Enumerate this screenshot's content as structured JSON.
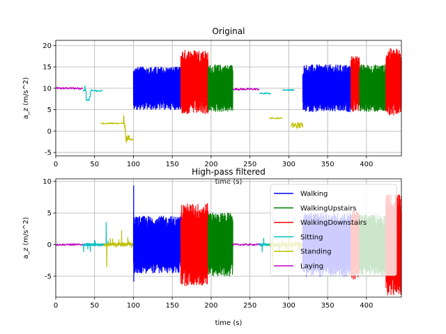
{
  "chart_data": [
    {
      "type": "line",
      "title": "Original",
      "xlabel": "time (s)",
      "ylabel": "a_z (m/s^2)",
      "xlim": [
        0,
        445
      ],
      "ylim": [
        -5.8,
        21.2
      ],
      "xticks": [
        0,
        50,
        100,
        150,
        200,
        250,
        300,
        350,
        400
      ],
      "yticks": [
        -5,
        0,
        5,
        10,
        15,
        20
      ],
      "grid": true,
      "segments": [
        {
          "series": "Laying",
          "x": [
            0,
            35
          ],
          "center": 10.0,
          "amp": 0.25,
          "style": "flat"
        },
        {
          "series": "Sitting",
          "x": [
            35,
            48
          ],
          "center": 9.5,
          "amp": 0.3,
          "style": "step_sit1"
        },
        {
          "series": "Sitting",
          "x": [
            48,
            60
          ],
          "center": 9.4,
          "amp": 0.2,
          "style": "flat"
        },
        {
          "series": "Standing",
          "x": [
            58,
            85
          ],
          "center": 1.8,
          "amp": 0.15,
          "style": "flat"
        },
        {
          "series": "Standing",
          "x": [
            85,
            100
          ],
          "center": 0.0,
          "amp": 3.5,
          "style": "stand_drop"
        },
        {
          "series": "Walking",
          "x": [
            100,
            161
          ],
          "center": 10.0,
          "amp": 5.0,
          "style": "osc"
        },
        {
          "series": "WalkingDownstairs",
          "x": [
            161,
            196
          ],
          "center": 11.5,
          "amp": 7.5,
          "style": "osc"
        },
        {
          "series": "WalkingUpstairs",
          "x": [
            196,
            228
          ],
          "center": 10.0,
          "amp": 5.5,
          "style": "osc"
        },
        {
          "series": "Laying",
          "x": [
            228,
            262
          ],
          "center": 9.8,
          "amp": 0.25,
          "style": "flat"
        },
        {
          "series": "Sitting",
          "x": [
            262,
            277
          ],
          "center": 8.8,
          "amp": 0.15,
          "style": "flat"
        },
        {
          "series": "Standing",
          "x": [
            275,
            292
          ],
          "center": 3.0,
          "amp": 0.15,
          "style": "flat"
        },
        {
          "series": "Sitting",
          "x": [
            292,
            307
          ],
          "center": 9.6,
          "amp": 0.15,
          "style": "flat"
        },
        {
          "series": "Standing",
          "x": [
            303,
            318
          ],
          "center": 1.3,
          "amp": 0.8,
          "style": "flat"
        },
        {
          "series": "Walking",
          "x": [
            318,
            380
          ],
          "center": 10.0,
          "amp": 5.5,
          "style": "osc"
        },
        {
          "series": "WalkingDownstairs",
          "x": [
            380,
            391
          ],
          "center": 11.0,
          "amp": 6.5,
          "style": "osc"
        },
        {
          "series": "WalkingUpstairs",
          "x": [
            391,
            425
          ],
          "center": 10.0,
          "amp": 5.5,
          "style": "osc"
        },
        {
          "series": "WalkingDownstairs",
          "x": [
            425,
            445
          ],
          "center": 11.5,
          "amp": 7.8,
          "style": "osc"
        }
      ]
    },
    {
      "type": "line",
      "title": "High-pass filtered",
      "xlabel": "time (s)",
      "ylabel": "a_z (m/s^2)",
      "xlim": [
        0,
        445
      ],
      "ylim": [
        -8.3,
        10.4
      ],
      "xticks": [
        0,
        50,
        100,
        150,
        200,
        250,
        300,
        350,
        400
      ],
      "yticks": [
        -5,
        0,
        5,
        10
      ],
      "grid": true,
      "legend": {
        "position": "top-right",
        "entries": [
          {
            "name": "Walking",
            "color": "#0000ff"
          },
          {
            "name": "WalkingUpstairs",
            "color": "#008000"
          },
          {
            "name": "WalkingDownstairs",
            "color": "#ff0000"
          },
          {
            "name": "Sitting",
            "color": "#00bfbf"
          },
          {
            "name": "Standing",
            "color": "#bfbf00"
          },
          {
            "name": "Laying",
            "color": "#bf00bf"
          }
        ]
      },
      "segments": [
        {
          "series": "Laying",
          "x": [
            0,
            35
          ],
          "center": 0.0,
          "amp": 0.15,
          "style": "flat"
        },
        {
          "series": "Sitting",
          "x": [
            35,
            60
          ],
          "center": 0.0,
          "amp": 0.4,
          "style": "spikes_sit"
        },
        {
          "series": "Sitting",
          "x": [
            60,
            70
          ],
          "center": 0.0,
          "amp": 0.3,
          "style": "spikes_sit2"
        },
        {
          "series": "Standing",
          "x": [
            62,
            100
          ],
          "center": 0.0,
          "amp": 0.6,
          "style": "spikes_stand"
        },
        {
          "series": "Walking",
          "x": [
            100,
            161
          ],
          "center": 0.0,
          "amp": 4.5,
          "style": "osc_hp_spike"
        },
        {
          "series": "WalkingDownstairs",
          "x": [
            161,
            196
          ],
          "center": 0.0,
          "amp": 6.5,
          "style": "osc"
        },
        {
          "series": "WalkingUpstairs",
          "x": [
            196,
            228
          ],
          "center": 0.0,
          "amp": 5.0,
          "style": "osc"
        },
        {
          "series": "Laying",
          "x": [
            228,
            262
          ],
          "center": 0.0,
          "amp": 0.15,
          "style": "flat"
        },
        {
          "series": "Sitting",
          "x": [
            262,
            290
          ],
          "center": 0.0,
          "amp": 0.4,
          "style": "spikes_sit"
        },
        {
          "series": "Standing",
          "x": [
            275,
            318
          ],
          "center": 0.0,
          "amp": 0.7,
          "style": "spikes_stand"
        },
        {
          "series": "Walking",
          "x": [
            318,
            380
          ],
          "center": 0.0,
          "amp": 5.0,
          "style": "osc"
        },
        {
          "series": "WalkingDownstairs",
          "x": [
            380,
            391
          ],
          "center": 0.0,
          "amp": 5.5,
          "style": "osc"
        },
        {
          "series": "WalkingUpstairs",
          "x": [
            391,
            425
          ],
          "center": 0.0,
          "amp": 4.8,
          "style": "osc"
        },
        {
          "series": "WalkingDownstairs",
          "x": [
            425,
            445
          ],
          "center": 0.0,
          "amp": 8.0,
          "style": "osc"
        }
      ]
    }
  ]
}
